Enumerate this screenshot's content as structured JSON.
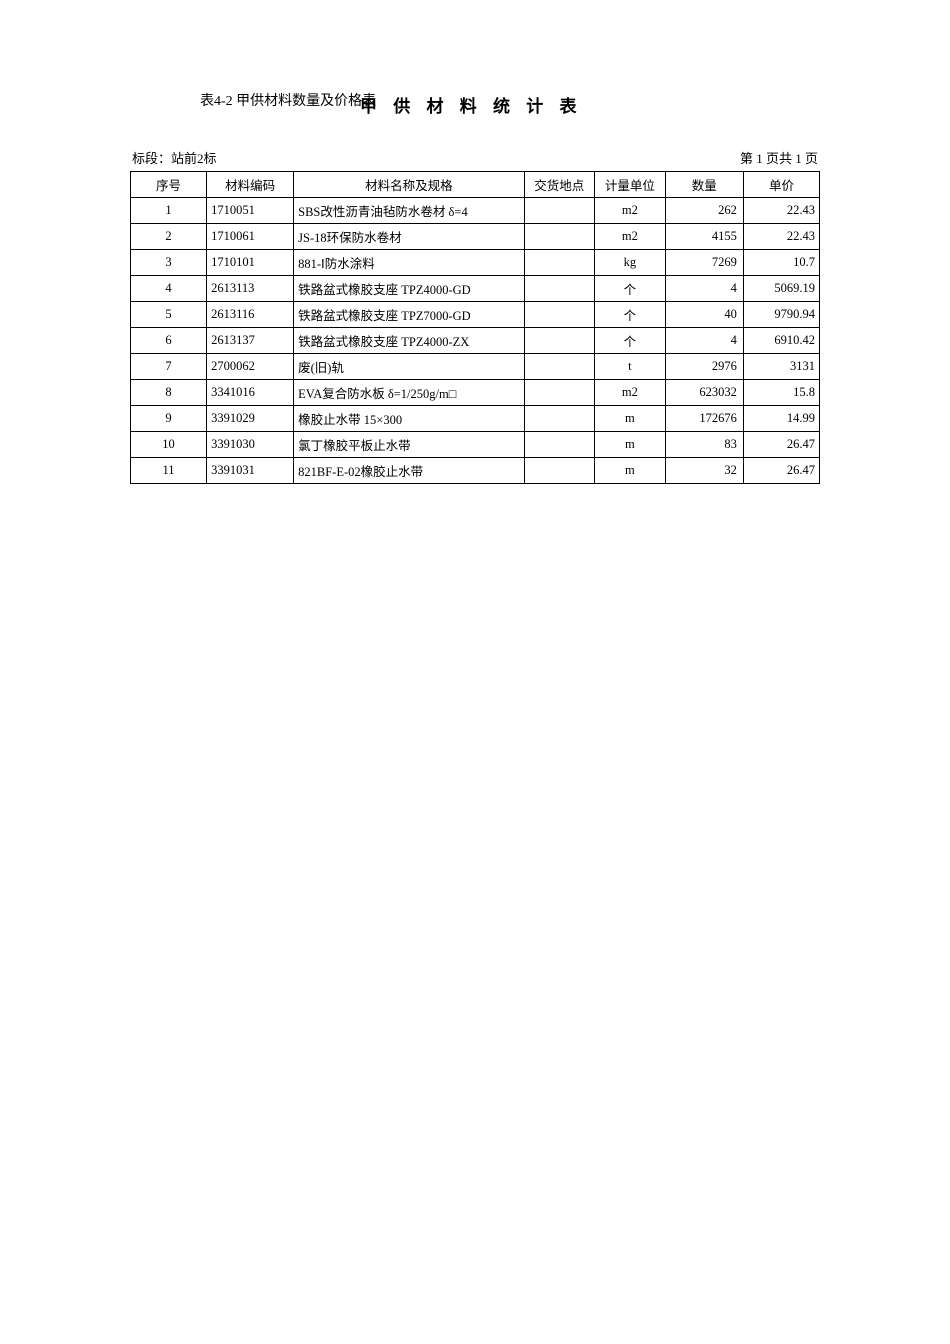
{
  "header": {
    "left_title": "表4-2 甲供材料数量及价格表",
    "right_title": "甲 供 材 料 统 计 表"
  },
  "subheader": {
    "section": "标段：站前2标",
    "pagination": "第 1 页共 1 页"
  },
  "table": {
    "columns": [
      "序号",
      "材料编码",
      "材料名称及规格",
      "交货地点",
      "计量单位",
      "数量",
      "单价"
    ],
    "rows": [
      {
        "seq": "1",
        "code": "1710051",
        "name": "SBS改性沥青油毡防水卷材 δ=4",
        "loc": "",
        "unit": "m2",
        "qty": "262",
        "price": "22.43"
      },
      {
        "seq": "2",
        "code": "1710061",
        "name": "JS-18环保防水卷材",
        "loc": "",
        "unit": "m2",
        "qty": "4155",
        "price": "22.43"
      },
      {
        "seq": "3",
        "code": "1710101",
        "name": "881-Ⅰ防水涂料",
        "loc": "",
        "unit": "kg",
        "qty": "7269",
        "price": "10.7"
      },
      {
        "seq": "4",
        "code": "2613113",
        "name": "铁路盆式橡胶支座 TPZ4000-GD",
        "loc": "",
        "unit": "个",
        "qty": "4",
        "price": "5069.19"
      },
      {
        "seq": "5",
        "code": "2613116",
        "name": "铁路盆式橡胶支座 TPZ7000-GD",
        "loc": "",
        "unit": "个",
        "qty": "40",
        "price": "9790.94"
      },
      {
        "seq": "6",
        "code": "2613137",
        "name": "铁路盆式橡胶支座 TPZ4000-ZX",
        "loc": "",
        "unit": "个",
        "qty": "4",
        "price": "6910.42"
      },
      {
        "seq": "7",
        "code": "2700062",
        "name": "废(旧)轨",
        "loc": "",
        "unit": "t",
        "qty": "2976",
        "price": "3131"
      },
      {
        "seq": "8",
        "code": "3341016",
        "name": "EVA复合防水板 δ=1/250g/m□",
        "loc": "",
        "unit": "m2",
        "qty": "623032",
        "price": "15.8"
      },
      {
        "seq": "9",
        "code": "3391029",
        "name": "橡胶止水带 15×300",
        "loc": "",
        "unit": "m",
        "qty": "172676",
        "price": "14.99"
      },
      {
        "seq": "10",
        "code": "3391030",
        "name": "氯丁橡胶平板止水带",
        "loc": "",
        "unit": "m",
        "qty": "83",
        "price": "26.47"
      },
      {
        "seq": "11",
        "code": "3391031",
        "name": "821BF-E-02橡胶止水带",
        "loc": "",
        "unit": "m",
        "qty": "32",
        "price": "26.47"
      }
    ]
  }
}
